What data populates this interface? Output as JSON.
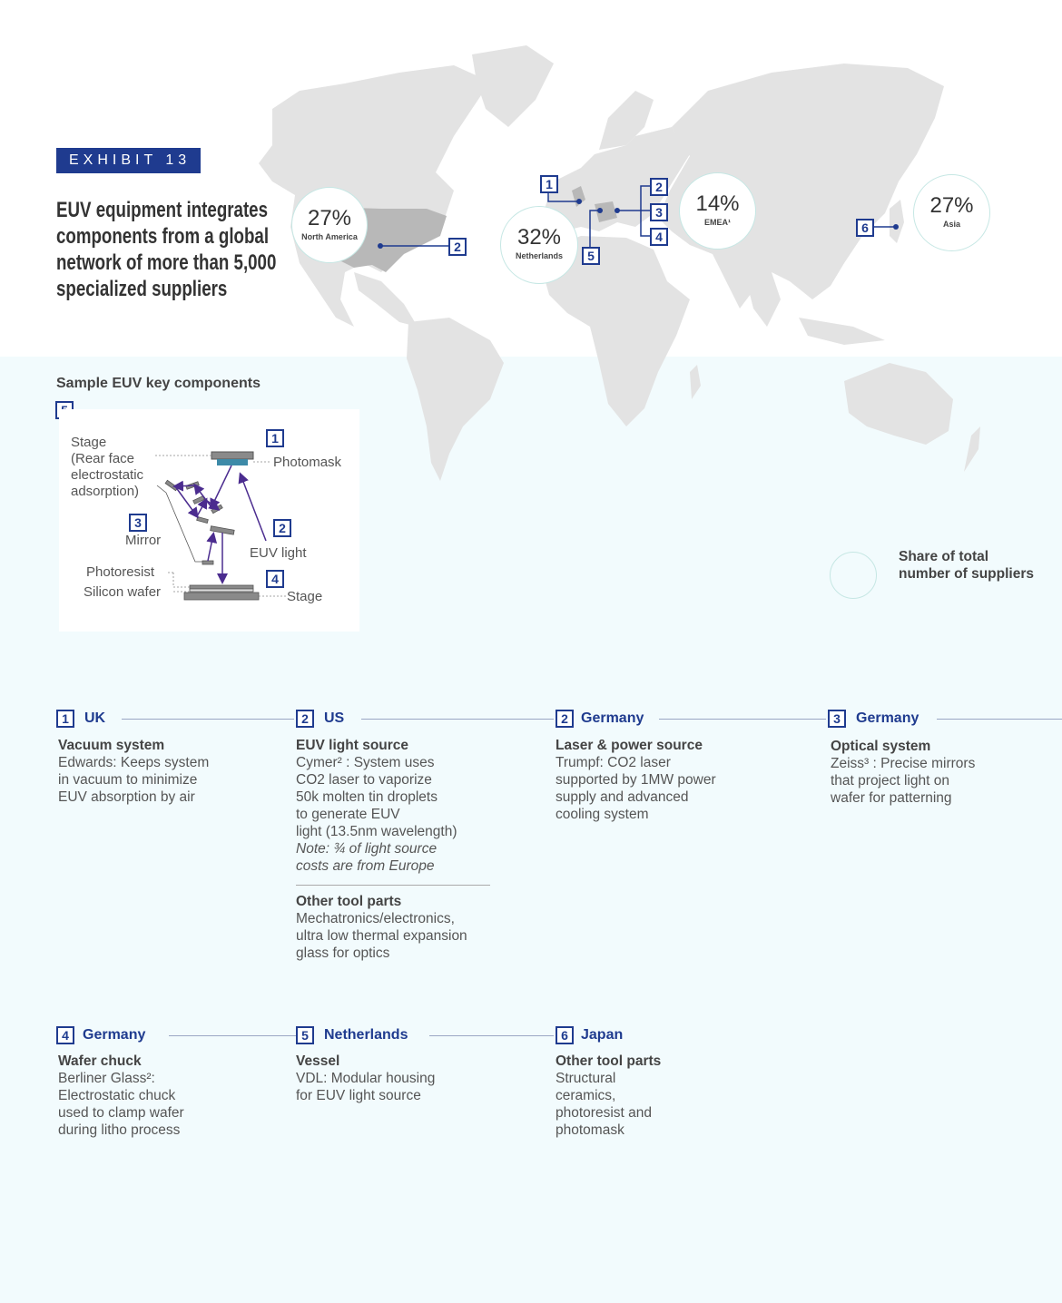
{
  "exhibit_label": "EXHIBIT 13",
  "headline": "EUV equipment integrates components from a global network of more than 5,000 specialized suppliers",
  "regions": [
    {
      "pct": "27%",
      "label": "North America"
    },
    {
      "pct": "32%",
      "label": "Netherlands"
    },
    {
      "pct": "14%",
      "label": "EMEA¹"
    },
    {
      "pct": "27%",
      "label": "Asia"
    }
  ],
  "map_markers": [
    "2",
    "1",
    "2",
    "3",
    "4",
    "5",
    "6"
  ],
  "legend": "Share of total number of suppliers",
  "diagram": {
    "title": "Sample EUV key components",
    "badge": "5",
    "labels": {
      "stage_top": "Stage",
      "stage_top_detail_1": "(Rear face",
      "stage_top_detail_2": "electrostatic",
      "stage_top_detail_3": "adsorption)",
      "photomask": "Photomask",
      "mirror": "Mirror",
      "euv_light": "EUV light",
      "photoresist": "Photoresist",
      "silicon_wafer": "Silicon wafer",
      "stage_bottom": "Stage"
    },
    "numbers": [
      "1",
      "2",
      "3",
      "4"
    ]
  },
  "cards": [
    {
      "num": "1",
      "country": "UK",
      "title": "Vacuum system",
      "lines": [
        "Edwards: Keeps system",
        "in vacuum to minimize",
        "EUV absorption by air"
      ]
    },
    {
      "num": "2",
      "country": "US",
      "title": "EUV light source",
      "lines": [
        "Cymer² : System uses",
        "CO2 laser to vaporize",
        "50k molten tin droplets",
        "to generate EUV",
        "light (13.5nm wavelength)"
      ],
      "note": [
        "Note: ¾ of light source",
        "costs are from Europe"
      ],
      "extra_title": "Other tool parts",
      "extra_lines": [
        "Mechatronics/electronics,",
        "ultra low thermal expansion",
        "glass for optics"
      ]
    },
    {
      "num": "2",
      "country": "Germany",
      "title": "Laser & power source",
      "lines": [
        "Trumpf: CO2 laser",
        "supported by 1MW power",
        "supply and advanced",
        "cooling system"
      ]
    },
    {
      "num": "3",
      "country": "Germany",
      "title": "Optical system",
      "lines": [
        "Zeiss³ : Precise mirrors",
        "that project light on",
        "wafer for patterning"
      ]
    },
    {
      "num": "4",
      "country": "Germany",
      "title": "Wafer chuck",
      "lines": [
        "Berliner Glass²:",
        "Electrostatic chuck",
        "used to clamp wafer",
        "during litho process"
      ]
    },
    {
      "num": "5",
      "country": "Netherlands",
      "title": "Vessel",
      "lines": [
        "VDL: Modular housing",
        "for EUV light source"
      ]
    },
    {
      "num": "6",
      "country": "Japan",
      "title": "Other tool parts",
      "lines": [
        "Structural",
        "ceramics,",
        "photoresist and",
        "photomask"
      ]
    }
  ],
  "colors": {
    "navy": "#1f3b8f",
    "land": "#e3e3e3",
    "us_highlight": "#b8b8b8",
    "arrow": "#4b2c8f",
    "bubble_border": "#c6e7e4",
    "background_lower": "#f2fbfd"
  }
}
